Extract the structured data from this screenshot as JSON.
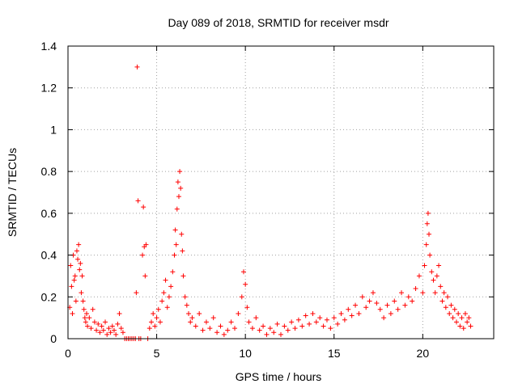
{
  "chart_data": {
    "type": "scatter",
    "title": "Day 089 of 2018, SRMTID for receiver msdr",
    "xlabel": "GPS time / hours",
    "ylabel": "SRMTID / TECUs",
    "xlim": [
      0,
      24
    ],
    "ylim": [
      0,
      1.4
    ],
    "x_ticks": [
      0,
      5,
      10,
      15,
      20
    ],
    "x_tick_labels": [
      "0",
      "5",
      "10",
      "15",
      "20"
    ],
    "y_ticks": [
      0,
      0.2,
      0.4,
      0.6,
      0.8,
      1,
      1.2,
      1.4
    ],
    "y_tick_labels": [
      "0",
      "0.2",
      "0.4",
      "0.6",
      "0.8",
      "1",
      "1.2",
      "1.4"
    ],
    "grid": true,
    "marker": "plus",
    "series": [
      {
        "name": "SRMTID",
        "color": "#ff0000",
        "points": [
          [
            0.1,
            0.15
          ],
          [
            0.15,
            0.35
          ],
          [
            0.2,
            0.25
          ],
          [
            0.25,
            0.12
          ],
          [
            0.3,
            0.4
          ],
          [
            0.35,
            0.28
          ],
          [
            0.4,
            0.3
          ],
          [
            0.45,
            0.18
          ],
          [
            0.5,
            0.42
          ],
          [
            0.55,
            0.38
          ],
          [
            0.6,
            0.45
          ],
          [
            0.65,
            0.33
          ],
          [
            0.7,
            0.36
          ],
          [
            0.75,
            0.22
          ],
          [
            0.8,
            0.3
          ],
          [
            0.85,
            0.18
          ],
          [
            0.9,
            0.14
          ],
          [
            0.95,
            0.1
          ],
          [
            1.0,
            0.08
          ],
          [
            1.05,
            0.12
          ],
          [
            1.1,
            0.06
          ],
          [
            1.2,
            0.1
          ],
          [
            1.3,
            0.05
          ],
          [
            1.4,
            0.14
          ],
          [
            1.5,
            0.08
          ],
          [
            1.6,
            0.04
          ],
          [
            1.7,
            0.07
          ],
          [
            1.8,
            0.03
          ],
          [
            1.9,
            0.06
          ],
          [
            2.0,
            0.04
          ],
          [
            2.1,
            0.08
          ],
          [
            2.2,
            0.02
          ],
          [
            2.3,
            0.05
          ],
          [
            2.4,
            0.03
          ],
          [
            2.5,
            0.06
          ],
          [
            2.6,
            0.04
          ],
          [
            2.7,
            0.02
          ],
          [
            2.8,
            0.07
          ],
          [
            2.9,
            0.12
          ],
          [
            3.0,
            0.05
          ],
          [
            3.1,
            0.03
          ],
          [
            3.2,
            0.0
          ],
          [
            3.3,
            0.0
          ],
          [
            3.4,
            0.0
          ],
          [
            3.5,
            0.0
          ],
          [
            3.6,
            0.0
          ],
          [
            3.7,
            0.0
          ],
          [
            3.8,
            0.0
          ],
          [
            3.85,
            0.22
          ],
          [
            3.9,
            1.3
          ],
          [
            3.95,
            0.66
          ],
          [
            4.0,
            0.0
          ],
          [
            4.1,
            0.0
          ],
          [
            4.2,
            0.4
          ],
          [
            4.25,
            0.63
          ],
          [
            4.3,
            0.44
          ],
          [
            4.35,
            0.3
          ],
          [
            4.4,
            0.45
          ],
          [
            4.5,
            0.0
          ],
          [
            4.6,
            0.05
          ],
          [
            4.7,
            0.08
          ],
          [
            4.8,
            0.12
          ],
          [
            4.9,
            0.06
          ],
          [
            5.0,
            0.1
          ],
          [
            5.1,
            0.14
          ],
          [
            5.2,
            0.08
          ],
          [
            5.3,
            0.18
          ],
          [
            5.4,
            0.22
          ],
          [
            5.5,
            0.28
          ],
          [
            5.6,
            0.15
          ],
          [
            5.7,
            0.2
          ],
          [
            5.8,
            0.25
          ],
          [
            5.9,
            0.32
          ],
          [
            6.0,
            0.4
          ],
          [
            6.05,
            0.52
          ],
          [
            6.1,
            0.45
          ],
          [
            6.15,
            0.62
          ],
          [
            6.2,
            0.75
          ],
          [
            6.25,
            0.68
          ],
          [
            6.3,
            0.8
          ],
          [
            6.35,
            0.72
          ],
          [
            6.4,
            0.5
          ],
          [
            6.45,
            0.42
          ],
          [
            6.5,
            0.3
          ],
          [
            6.6,
            0.2
          ],
          [
            6.7,
            0.16
          ],
          [
            6.8,
            0.12
          ],
          [
            6.9,
            0.08
          ],
          [
            7.0,
            0.1
          ],
          [
            7.2,
            0.06
          ],
          [
            7.4,
            0.12
          ],
          [
            7.6,
            0.04
          ],
          [
            7.8,
            0.08
          ],
          [
            8.0,
            0.05
          ],
          [
            8.2,
            0.1
          ],
          [
            8.4,
            0.03
          ],
          [
            8.6,
            0.06
          ],
          [
            8.8,
            0.02
          ],
          [
            9.0,
            0.04
          ],
          [
            9.2,
            0.08
          ],
          [
            9.4,
            0.05
          ],
          [
            9.6,
            0.12
          ],
          [
            9.8,
            0.2
          ],
          [
            9.9,
            0.32
          ],
          [
            10.0,
            0.26
          ],
          [
            10.1,
            0.15
          ],
          [
            10.2,
            0.08
          ],
          [
            10.4,
            0.05
          ],
          [
            10.6,
            0.1
          ],
          [
            10.8,
            0.04
          ],
          [
            11.0,
            0.06
          ],
          [
            11.2,
            0.02
          ],
          [
            11.4,
            0.05
          ],
          [
            11.6,
            0.03
          ],
          [
            11.8,
            0.07
          ],
          [
            12.0,
            0.02
          ],
          [
            12.2,
            0.06
          ],
          [
            12.4,
            0.04
          ],
          [
            12.6,
            0.08
          ],
          [
            12.8,
            0.05
          ],
          [
            13.0,
            0.09
          ],
          [
            13.2,
            0.06
          ],
          [
            13.4,
            0.11
          ],
          [
            13.6,
            0.07
          ],
          [
            13.8,
            0.12
          ],
          [
            14.0,
            0.08
          ],
          [
            14.2,
            0.1
          ],
          [
            14.4,
            0.06
          ],
          [
            14.6,
            0.09
          ],
          [
            14.8,
            0.05
          ],
          [
            15.0,
            0.1
          ],
          [
            15.2,
            0.07
          ],
          [
            15.4,
            0.12
          ],
          [
            15.6,
            0.09
          ],
          [
            15.8,
            0.14
          ],
          [
            16.0,
            0.11
          ],
          [
            16.2,
            0.16
          ],
          [
            16.4,
            0.12
          ],
          [
            16.6,
            0.2
          ],
          [
            16.8,
            0.15
          ],
          [
            17.0,
            0.18
          ],
          [
            17.2,
            0.22
          ],
          [
            17.4,
            0.17
          ],
          [
            17.6,
            0.14
          ],
          [
            17.8,
            0.1
          ],
          [
            18.0,
            0.16
          ],
          [
            18.2,
            0.12
          ],
          [
            18.4,
            0.18
          ],
          [
            18.6,
            0.14
          ],
          [
            18.8,
            0.22
          ],
          [
            19.0,
            0.16
          ],
          [
            19.2,
            0.2
          ],
          [
            19.4,
            0.18
          ],
          [
            19.6,
            0.24
          ],
          [
            19.8,
            0.3
          ],
          [
            20.0,
            0.22
          ],
          [
            20.1,
            0.35
          ],
          [
            20.2,
            0.45
          ],
          [
            20.25,
            0.55
          ],
          [
            20.3,
            0.6
          ],
          [
            20.35,
            0.5
          ],
          [
            20.4,
            0.4
          ],
          [
            20.5,
            0.32
          ],
          [
            20.6,
            0.28
          ],
          [
            20.7,
            0.22
          ],
          [
            20.8,
            0.3
          ],
          [
            20.9,
            0.35
          ],
          [
            21.0,
            0.25
          ],
          [
            21.1,
            0.18
          ],
          [
            21.2,
            0.22
          ],
          [
            21.3,
            0.15
          ],
          [
            21.4,
            0.2
          ],
          [
            21.5,
            0.12
          ],
          [
            21.6,
            0.16
          ],
          [
            21.7,
            0.1
          ],
          [
            21.8,
            0.14
          ],
          [
            21.9,
            0.08
          ],
          [
            22.0,
            0.12
          ],
          [
            22.1,
            0.06
          ],
          [
            22.2,
            0.1
          ],
          [
            22.3,
            0.05
          ],
          [
            22.4,
            0.12
          ],
          [
            22.5,
            0.08
          ],
          [
            22.6,
            0.1
          ],
          [
            22.7,
            0.06
          ]
        ]
      }
    ]
  }
}
